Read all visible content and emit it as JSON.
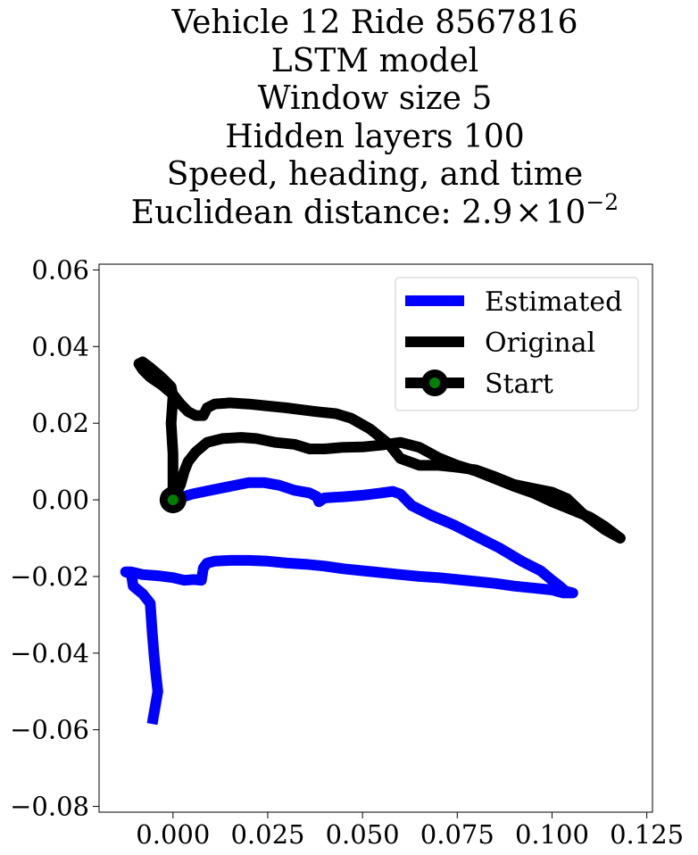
{
  "chart_data": {
    "type": "line",
    "title_lines": [
      "Vehicle 12 Ride 8567816",
      "LSTM model",
      "Window size 5",
      "Hidden layers 100",
      "Speed, heading, and time"
    ],
    "title_metric_prefix": "Euclidean distance: 2.9",
    "title_metric_times": "×",
    "title_metric_base": "10",
    "title_metric_exponent": "−2",
    "xlabel": "",
    "ylabel": "",
    "xlim": [
      -0.0195,
      0.1265
    ],
    "ylim": [
      -0.0815,
      0.0615
    ],
    "x_ticks": [
      {
        "value": 0.0,
        "label": "0.000"
      },
      {
        "value": 0.025,
        "label": "0.025"
      },
      {
        "value": 0.05,
        "label": "0.050"
      },
      {
        "value": 0.075,
        "label": "0.075"
      },
      {
        "value": 0.1,
        "label": "0.100"
      },
      {
        "value": 0.125,
        "label": "0.125"
      }
    ],
    "y_ticks": [
      {
        "value": 0.06,
        "label": "0.06"
      },
      {
        "value": 0.04,
        "label": "0.04"
      },
      {
        "value": 0.02,
        "label": "0.02"
      },
      {
        "value": 0.0,
        "label": "0.00"
      },
      {
        "value": -0.02,
        "label": "−0.02"
      },
      {
        "value": -0.04,
        "label": "−0.04"
      },
      {
        "value": -0.06,
        "label": "−0.06"
      },
      {
        "value": -0.08,
        "label": "−0.08"
      }
    ],
    "grid": false,
    "legend_position": "top-right",
    "series": [
      {
        "name": "Estimated",
        "color": "#0000ff",
        "points": [
          [
            0.0,
            0.0
          ],
          [
            0.005,
            0.0015
          ],
          [
            0.01,
            0.0025
          ],
          [
            0.015,
            0.0035
          ],
          [
            0.02,
            0.0045
          ],
          [
            0.024,
            0.0045
          ],
          [
            0.028,
            0.0038
          ],
          [
            0.032,
            0.0025
          ],
          [
            0.036,
            0.0018
          ],
          [
            0.038,
            0.0008
          ],
          [
            0.0385,
            -0.0005
          ],
          [
            0.04,
            0.0005
          ],
          [
            0.045,
            0.0008
          ],
          [
            0.05,
            0.0012
          ],
          [
            0.055,
            0.0018
          ],
          [
            0.058,
            0.0022
          ],
          [
            0.06,
            0.0015
          ],
          [
            0.063,
            -0.0015
          ],
          [
            0.068,
            -0.004
          ],
          [
            0.074,
            -0.0065
          ],
          [
            0.08,
            -0.0095
          ],
          [
            0.086,
            -0.0125
          ],
          [
            0.092,
            -0.016
          ],
          [
            0.097,
            -0.0185
          ],
          [
            0.1,
            -0.021
          ],
          [
            0.102,
            -0.0225
          ],
          [
            0.1035,
            -0.0238
          ],
          [
            0.1055,
            -0.0243
          ],
          [
            0.103,
            -0.0243
          ],
          [
            0.1,
            -0.0235
          ],
          [
            0.095,
            -0.023
          ],
          [
            0.09,
            -0.0225
          ],
          [
            0.085,
            -0.0218
          ],
          [
            0.08,
            -0.0213
          ],
          [
            0.075,
            -0.0208
          ],
          [
            0.07,
            -0.0203
          ],
          [
            0.065,
            -0.02
          ],
          [
            0.06,
            -0.0195
          ],
          [
            0.055,
            -0.019
          ],
          [
            0.05,
            -0.0185
          ],
          [
            0.045,
            -0.018
          ],
          [
            0.04,
            -0.0173
          ],
          [
            0.035,
            -0.0168
          ],
          [
            0.03,
            -0.0165
          ],
          [
            0.025,
            -0.016
          ],
          [
            0.02,
            -0.0158
          ],
          [
            0.015,
            -0.0158
          ],
          [
            0.011,
            -0.016
          ],
          [
            0.009,
            -0.0165
          ],
          [
            0.008,
            -0.0178
          ],
          [
            0.0075,
            -0.021
          ],
          [
            0.0055,
            -0.0208
          ],
          [
            0.003,
            -0.021
          ],
          [
            0.0,
            -0.0203
          ],
          [
            -0.004,
            -0.0198
          ],
          [
            -0.008,
            -0.0195
          ],
          [
            -0.011,
            -0.0188
          ],
          [
            -0.0125,
            -0.0188
          ],
          [
            -0.011,
            -0.0193
          ],
          [
            -0.0105,
            -0.0225
          ],
          [
            -0.008,
            -0.0245
          ],
          [
            -0.006,
            -0.027
          ],
          [
            -0.0055,
            -0.0345
          ],
          [
            -0.005,
            -0.0405
          ],
          [
            -0.0045,
            -0.0455
          ],
          [
            -0.004,
            -0.05
          ],
          [
            -0.0055,
            -0.0585
          ]
        ]
      },
      {
        "name": "Original",
        "color": "#000000",
        "points": [
          [
            0.0,
            0.0
          ],
          [
            0.002,
            0.004
          ],
          [
            0.003,
            0.0075
          ],
          [
            0.004,
            0.01
          ],
          [
            0.006,
            0.0125
          ],
          [
            0.009,
            0.015
          ],
          [
            0.013,
            0.016
          ],
          [
            0.018,
            0.0163
          ],
          [
            0.022,
            0.016
          ],
          [
            0.027,
            0.015
          ],
          [
            0.032,
            0.0145
          ],
          [
            0.036,
            0.0133
          ],
          [
            0.04,
            0.0133
          ],
          [
            0.045,
            0.0137
          ],
          [
            0.05,
            0.0138
          ],
          [
            0.055,
            0.0143
          ],
          [
            0.06,
            0.015
          ],
          [
            0.065,
            0.0137
          ],
          [
            0.07,
            0.011
          ],
          [
            0.075,
            0.009
          ],
          [
            0.08,
            0.0075
          ],
          [
            0.085,
            0.0055
          ],
          [
            0.09,
            0.0035
          ],
          [
            0.095,
            0.0018
          ],
          [
            0.1,
            -0.0005
          ],
          [
            0.105,
            -0.0025
          ],
          [
            0.11,
            -0.0045
          ],
          [
            0.114,
            -0.007
          ],
          [
            0.118,
            -0.01
          ],
          [
            0.114,
            -0.0078
          ],
          [
            0.108,
            -0.0035
          ],
          [
            0.104,
            0.0003
          ],
          [
            0.1,
            0.002
          ],
          [
            0.095,
            0.003
          ],
          [
            0.09,
            0.004
          ],
          [
            0.085,
            0.006
          ],
          [
            0.08,
            0.0078
          ],
          [
            0.075,
            0.0085
          ],
          [
            0.07,
            0.009
          ],
          [
            0.065,
            0.009
          ],
          [
            0.06,
            0.0108
          ],
          [
            0.057,
            0.0145
          ],
          [
            0.052,
            0.0185
          ],
          [
            0.047,
            0.0213
          ],
          [
            0.043,
            0.0225
          ],
          [
            0.038,
            0.023
          ],
          [
            0.034,
            0.0235
          ],
          [
            0.03,
            0.024
          ],
          [
            0.025,
            0.0245
          ],
          [
            0.02,
            0.025
          ],
          [
            0.015,
            0.0253
          ],
          [
            0.011,
            0.025
          ],
          [
            0.009,
            0.024
          ],
          [
            0.008,
            0.022
          ],
          [
            0.006,
            0.022
          ],
          [
            0.004,
            0.023
          ],
          [
            0.002,
            0.025
          ],
          [
            0.0,
            0.0275
          ],
          [
            -0.003,
            0.03
          ],
          [
            -0.006,
            0.032
          ],
          [
            -0.008,
            0.034
          ],
          [
            -0.009,
            0.0355
          ],
          [
            -0.008,
            0.036
          ],
          [
            -0.006,
            0.0345
          ],
          [
            -0.003,
            0.032
          ],
          [
            -0.0005,
            0.0295
          ],
          [
            0.0,
            0.027
          ],
          [
            -0.0005,
            0.02
          ],
          [
            0.0,
            0.012
          ],
          [
            0.0,
            0.0
          ]
        ]
      }
    ],
    "start_point": {
      "name": "Start",
      "x": 0.0,
      "y": 0.0,
      "fill_color": "#008000",
      "edge_color": "#000000"
    }
  }
}
